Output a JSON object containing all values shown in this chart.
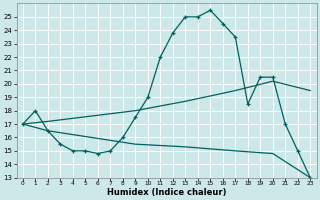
{
  "xlabel": "Humidex (Indice chaleur)",
  "bg_color": "#cde8e8",
  "grid_color": "#b0d0d0",
  "line_color": "#006060",
  "line1_x": [
    0,
    1,
    2,
    3,
    4,
    5,
    6,
    7,
    8,
    9,
    10,
    11,
    12,
    13,
    14,
    15,
    16,
    17,
    18,
    19,
    20,
    21,
    22,
    23
  ],
  "line1_y": [
    17.0,
    18.0,
    16.5,
    15.5,
    15.0,
    15.0,
    14.8,
    15.0,
    16.0,
    17.5,
    19.0,
    22.0,
    23.8,
    25.0,
    25.0,
    25.5,
    24.5,
    23.5,
    18.5,
    20.5,
    20.5,
    17.0,
    15.0,
    13.0
  ],
  "line2_x": [
    0,
    2,
    9,
    13,
    17,
    20,
    23
  ],
  "line2_y": [
    17.0,
    17.2,
    18.0,
    18.7,
    19.5,
    20.2,
    19.5
  ],
  "line3_x": [
    0,
    2,
    9,
    13,
    17,
    20,
    23
  ],
  "line3_y": [
    17.0,
    16.5,
    15.5,
    15.3,
    15.0,
    14.8,
    13.0
  ],
  "ylim": [
    13,
    26
  ],
  "xlim": [
    -0.5,
    23.5
  ],
  "yticks": [
    13,
    14,
    15,
    16,
    17,
    18,
    19,
    20,
    21,
    22,
    23,
    24,
    25
  ],
  "xticks": [
    0,
    1,
    2,
    3,
    4,
    5,
    6,
    7,
    8,
    9,
    10,
    11,
    12,
    13,
    14,
    15,
    16,
    17,
    18,
    19,
    20,
    21,
    22,
    23
  ]
}
